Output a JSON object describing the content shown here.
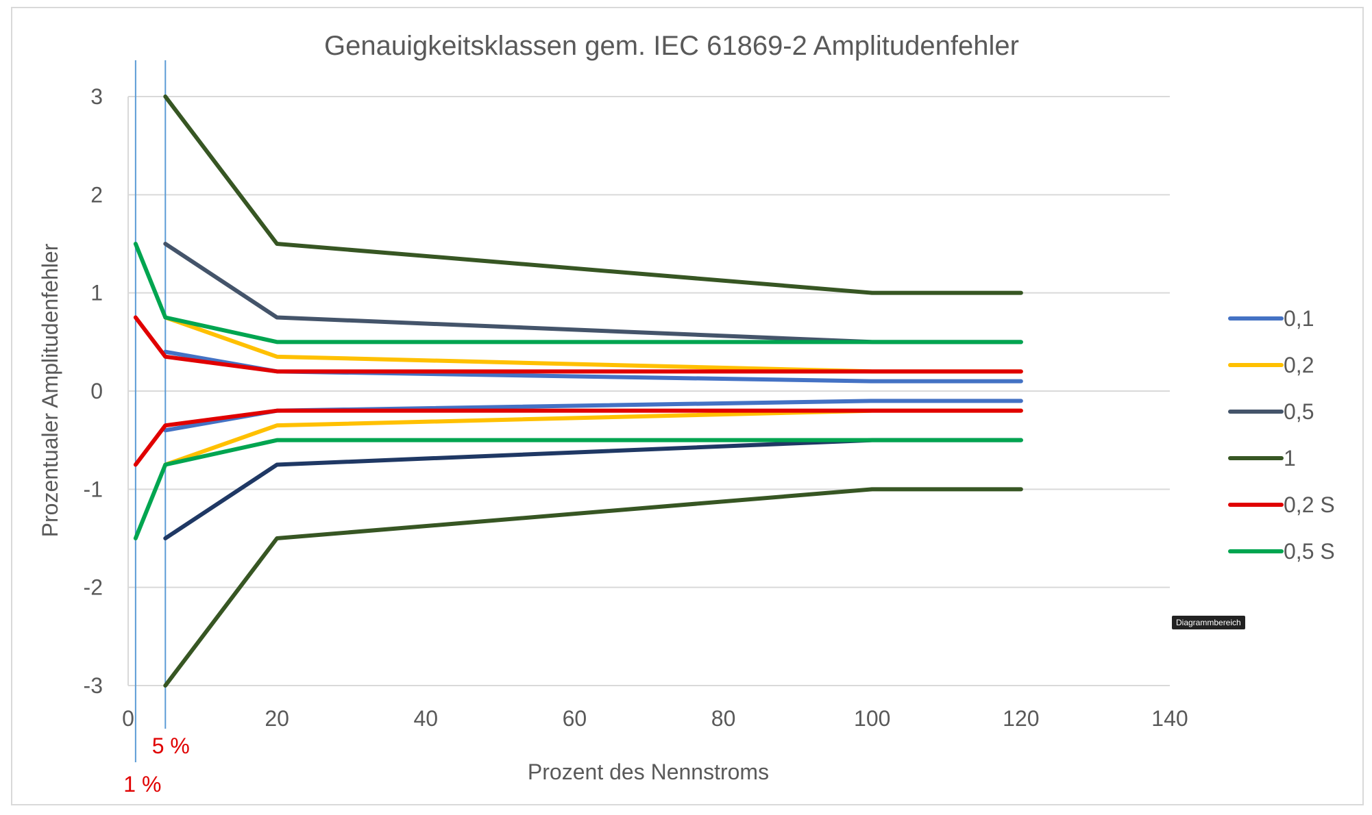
{
  "chart_data": {
    "type": "line",
    "title": "Genauigkeitsklassen gem. IEC 61869-2 Amplitudenfehler",
    "xlabel": "Prozent des Nennstroms",
    "ylabel": "Prozentualer Amplitudenfehler",
    "xlim": [
      0,
      140
    ],
    "ylim": [
      -3,
      3
    ],
    "xticks": [
      "0",
      "20",
      "40",
      "60",
      "80",
      "100",
      "120",
      "140"
    ],
    "yticks": [
      "-3",
      "-2",
      "-1",
      "0",
      "1",
      "2",
      "3"
    ],
    "grid": true,
    "legend_position": "right",
    "series": [
      {
        "name": "0,1",
        "color": "#4472c4",
        "upper": [
          [
            5,
            0.4
          ],
          [
            20,
            0.2
          ],
          [
            100,
            0.1
          ],
          [
            120,
            0.1
          ]
        ],
        "lower": [
          [
            5,
            -0.4
          ],
          [
            20,
            -0.2
          ],
          [
            100,
            -0.1
          ],
          [
            120,
            -0.1
          ]
        ]
      },
      {
        "name": "0,2",
        "color": "#ffc000",
        "upper": [
          [
            5,
            0.75
          ],
          [
            20,
            0.35
          ],
          [
            100,
            0.2
          ],
          [
            120,
            0.2
          ]
        ],
        "lower": [
          [
            5,
            -0.75
          ],
          [
            20,
            -0.35
          ],
          [
            100,
            -0.2
          ],
          [
            120,
            -0.2
          ]
        ]
      },
      {
        "name": "0,5",
        "color": "#44546a",
        "lower_color": "#1f3864",
        "upper": [
          [
            5,
            1.5
          ],
          [
            20,
            0.75
          ],
          [
            100,
            0.5
          ],
          [
            120,
            0.5
          ]
        ],
        "lower": [
          [
            5,
            -1.5
          ],
          [
            20,
            -0.75
          ],
          [
            100,
            -0.5
          ],
          [
            120,
            -0.5
          ]
        ]
      },
      {
        "name": "1",
        "color": "#375623",
        "upper": [
          [
            5,
            3
          ],
          [
            20,
            1.5
          ],
          [
            100,
            1
          ],
          [
            120,
            1
          ]
        ],
        "lower": [
          [
            5,
            -3
          ],
          [
            20,
            -1.5
          ],
          [
            100,
            -1
          ],
          [
            120,
            -1
          ]
        ]
      },
      {
        "name": "0,2 S",
        "color": "#e00000",
        "upper": [
          [
            1,
            0.75
          ],
          [
            5,
            0.35
          ],
          [
            20,
            0.2
          ],
          [
            100,
            0.2
          ],
          [
            120,
            0.2
          ]
        ],
        "lower": [
          [
            1,
            -0.75
          ],
          [
            5,
            -0.35
          ],
          [
            20,
            -0.2
          ],
          [
            100,
            -0.2
          ],
          [
            120,
            -0.2
          ]
        ]
      },
      {
        "name": "0,5 S",
        "color": "#00a550",
        "upper": [
          [
            1,
            1.5
          ],
          [
            5,
            0.75
          ],
          [
            20,
            0.5
          ],
          [
            100,
            0.5
          ],
          [
            120,
            0.5
          ]
        ],
        "lower": [
          [
            1,
            -1.5
          ],
          [
            5,
            -0.75
          ],
          [
            20,
            -0.5
          ],
          [
            100,
            -0.5
          ],
          [
            120,
            -0.5
          ]
        ]
      }
    ],
    "reference_lines": [
      {
        "x": 1,
        "label": "1 %"
      },
      {
        "x": 5,
        "label": "5 %"
      }
    ]
  },
  "tooltip": "Diagrammbereich"
}
